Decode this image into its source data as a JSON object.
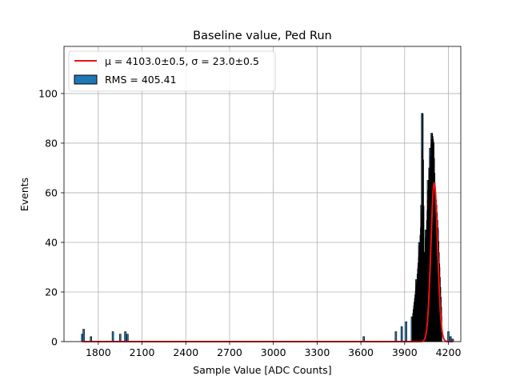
{
  "chart_data": {
    "type": "histogram",
    "title": "Baseline value, Ped Run",
    "xlabel": "Sample Value [ADC Counts]",
    "ylabel": "Events",
    "xlim": [
      1565,
      4285
    ],
    "ylim": [
      0,
      119
    ],
    "xticks": [
      1800,
      2100,
      2400,
      2700,
      3000,
      3300,
      3600,
      3900,
      4200
    ],
    "yticks": [
      0,
      20,
      40,
      60,
      80,
      100
    ],
    "grid": true,
    "legend_position": "top-left",
    "legend": {
      "fit_label": "μ = 4103.0±0.5, σ = 23.0±0.5",
      "hist_label": "RMS = 405.41"
    },
    "colors": {
      "fit": "#ee1111",
      "hist_fill": "#1f77b4",
      "hist_edge": "#000000",
      "grid": "#b0b0b0"
    },
    "fit": {
      "mu": 4103.0,
      "sigma": 23.0,
      "amplitude": 64,
      "x_range": [
        1690,
        4230
      ]
    },
    "histogram_peaks": [
      {
        "x": 1690,
        "y": 3
      },
      {
        "x": 1700,
        "y": 5
      },
      {
        "x": 1750,
        "y": 2
      },
      {
        "x": 1900,
        "y": 4
      },
      {
        "x": 1950,
        "y": 3
      },
      {
        "x": 1985,
        "y": 4
      },
      {
        "x": 2000,
        "y": 3
      },
      {
        "x": 3620,
        "y": 2
      },
      {
        "x": 3840,
        "y": 4
      },
      {
        "x": 3880,
        "y": 6
      },
      {
        "x": 3910,
        "y": 8
      },
      {
        "x": 3950,
        "y": 10
      },
      {
        "x": 3980,
        "y": 25
      },
      {
        "x": 4000,
        "y": 40
      },
      {
        "x": 4015,
        "y": 55
      },
      {
        "x": 4020,
        "y": 92
      },
      {
        "x": 4030,
        "y": 30
      },
      {
        "x": 4045,
        "y": 45
      },
      {
        "x": 4060,
        "y": 65
      },
      {
        "x": 4070,
        "y": 70
      },
      {
        "x": 4075,
        "y": 78
      },
      {
        "x": 4085,
        "y": 84
      },
      {
        "x": 4095,
        "y": 80
      },
      {
        "x": 4103,
        "y": 64
      },
      {
        "x": 4115,
        "y": 55
      },
      {
        "x": 4125,
        "y": 45
      },
      {
        "x": 4135,
        "y": 30
      },
      {
        "x": 4150,
        "y": 10
      },
      {
        "x": 4200,
        "y": 4
      },
      {
        "x": 4215,
        "y": 2
      },
      {
        "x": 4230,
        "y": 1
      }
    ]
  }
}
